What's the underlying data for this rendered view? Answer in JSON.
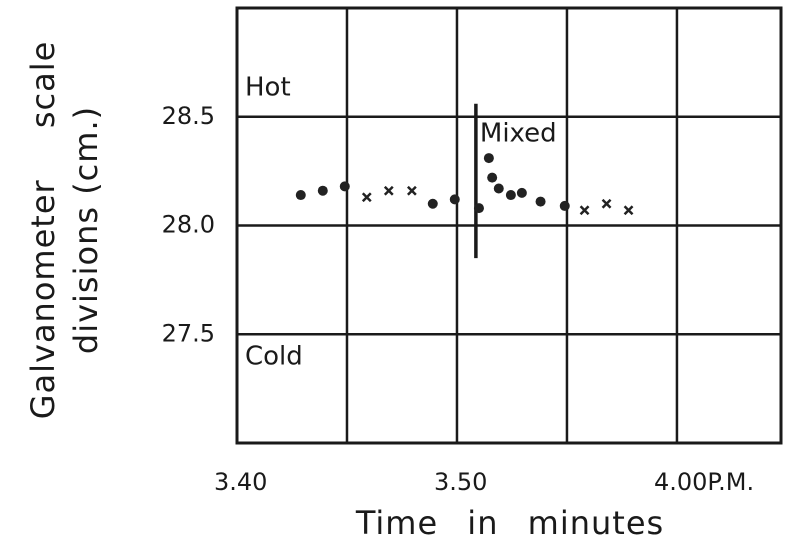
{
  "chart_data": {
    "type": "scatter",
    "x_label": "Time in minutes",
    "y_label": [
      "Galvanometer scale",
      "divisions (cm.)"
    ],
    "xlim": [
      40,
      64.73
    ],
    "ylim": [
      27,
      29
    ],
    "xticks": [
      {
        "value": 40,
        "label": "3.40"
      },
      {
        "value": 50,
        "label": "3.50"
      },
      {
        "value": 60,
        "label": "4.00P.M."
      }
    ],
    "xgrid": [
      40,
      45,
      50,
      55,
      60
    ],
    "yticks": [
      27.5,
      28.0,
      28.5
    ],
    "ytick_labels": [
      "27.5",
      "28.0",
      "28.5"
    ],
    "grid": true,
    "series": [
      {
        "marker": "circle",
        "color": "#222222",
        "x": [
          42.9,
          43.9,
          44.9,
          48.9,
          49.9,
          51.0,
          51.45,
          51.6,
          51.9,
          52.45,
          52.95,
          53.8,
          54.9
        ],
        "values": [
          28.14,
          28.16,
          28.18,
          28.1,
          28.12,
          28.08,
          28.31,
          28.22,
          28.17,
          28.14,
          28.15,
          28.11,
          28.09
        ]
      },
      {
        "marker": "cross",
        "color": "#222222",
        "x": [
          45.9,
          46.9,
          47.95,
          55.8,
          56.8,
          57.8
        ],
        "values": [
          28.13,
          28.16,
          28.16,
          28.07,
          28.1,
          28.07
        ]
      }
    ],
    "annotations": {
      "hot": "Hot",
      "cold": "Cold",
      "mixed": "Mixed"
    },
    "mixing_line": {
      "x": 50.86,
      "y": [
        27.85,
        28.56
      ]
    }
  }
}
